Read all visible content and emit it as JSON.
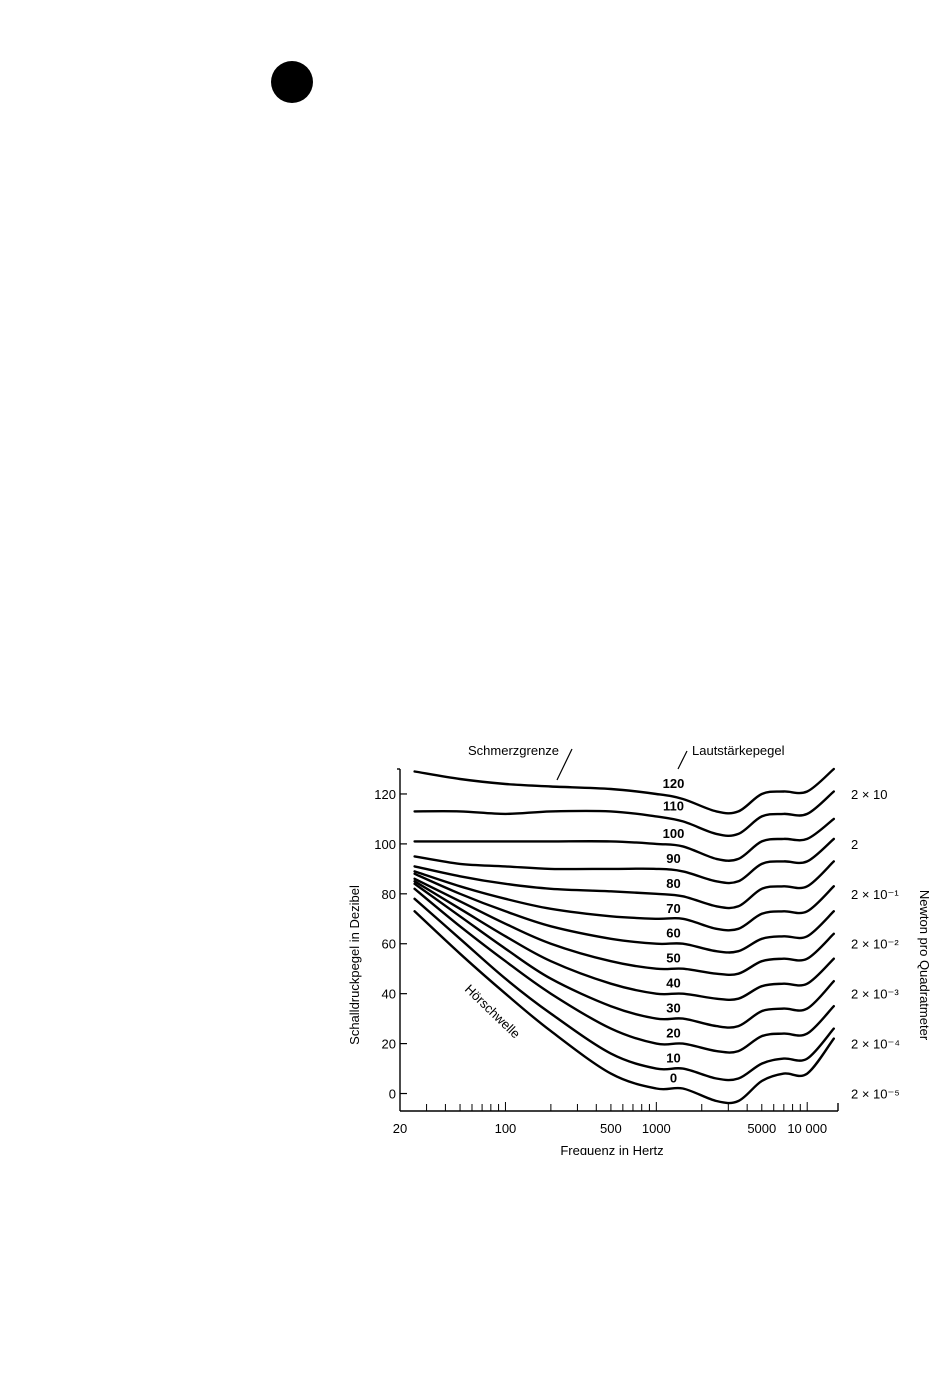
{
  "page": {
    "bullet_icon": "filled-circle-icon"
  },
  "chart_data": {
    "type": "line",
    "title": "",
    "xlabel": "Frequenz in Hertz",
    "ylabel": "Schalldruckpegel in Dezibel",
    "ylabel_right": "Newton pro Quadratmeter",
    "x_scale": "log",
    "xlim": [
      20,
      16000
    ],
    "ylim": [
      -7,
      130
    ],
    "x_ticks": [
      {
        "value": 20,
        "label": "20"
      },
      {
        "value": 100,
        "label": "100"
      },
      {
        "value": 500,
        "label": "500"
      },
      {
        "value": 1000,
        "label": "1000"
      },
      {
        "value": 5000,
        "label": "5000"
      },
      {
        "value": 10000,
        "label": "10 000"
      }
    ],
    "y_ticks": [
      0,
      20,
      40,
      60,
      80,
      100,
      120
    ],
    "right_axis_ticks": [
      {
        "db": 120,
        "label": "2 × 10"
      },
      {
        "db": 100,
        "label": "2"
      },
      {
        "db": 80,
        "label": "2 × 10⁻¹"
      },
      {
        "db": 60,
        "label": "2 × 10⁻²"
      },
      {
        "db": 40,
        "label": "2 × 10⁻³"
      },
      {
        "db": 20,
        "label": "2 × 10⁻⁴"
      },
      {
        "db": 0,
        "label": "2 × 10⁻⁵"
      }
    ],
    "annotations": {
      "pain_threshold": "Schmerzgrenze",
      "loudness_level": "Lautstärkepegel",
      "hearing_threshold": "Hörschwelle"
    },
    "x": [
      25,
      50,
      100,
      200,
      500,
      1000,
      1500,
      2500,
      3500,
      5000,
      7000,
      10000,
      15000
    ],
    "series": [
      {
        "name": "120",
        "values": [
          129,
          126,
          124,
          123,
          122,
          120,
          118,
          113,
          113,
          120,
          121,
          121,
          130
        ]
      },
      {
        "name": "110",
        "values": [
          113,
          113,
          112,
          113,
          113,
          111,
          109,
          104,
          104,
          111,
          112,
          112,
          121
        ]
      },
      {
        "name": "100",
        "values": [
          101,
          101,
          101,
          101,
          101,
          100,
          99,
          94,
          94,
          101,
          102,
          102,
          110
        ]
      },
      {
        "name": "90",
        "values": [
          95,
          92,
          91,
          90,
          90,
          90,
          89,
          85,
          85,
          92,
          93,
          93,
          102
        ]
      },
      {
        "name": "80",
        "values": [
          91,
          87,
          84,
          82,
          81,
          80,
          79,
          75,
          75,
          82,
          83,
          83,
          93
        ]
      },
      {
        "name": "70",
        "values": [
          89,
          83,
          78,
          74,
          71,
          70,
          70,
          66,
          66,
          72,
          73,
          73,
          83
        ]
      },
      {
        "name": "60",
        "values": [
          88,
          80,
          73,
          67,
          62,
          60,
          60,
          57,
          57,
          62,
          63,
          63,
          73
        ]
      },
      {
        "name": "50",
        "values": [
          86,
          77,
          68,
          60,
          53,
          50,
          50,
          48,
          48,
          53,
          54,
          54,
          64
        ]
      },
      {
        "name": "40",
        "values": [
          85,
          74,
          63,
          53,
          44,
          40,
          40,
          38,
          38,
          43,
          44,
          44,
          54
        ]
      },
      {
        "name": "30",
        "values": [
          84,
          71,
          58,
          46,
          35,
          30,
          30,
          27,
          27,
          33,
          34,
          34,
          45
        ]
      },
      {
        "name": "20",
        "values": [
          82,
          67,
          53,
          40,
          26,
          20,
          20,
          17,
          17,
          23,
          24,
          24,
          35
        ]
      },
      {
        "name": "10",
        "values": [
          78,
          62,
          46,
          32,
          16,
          10,
          10,
          6,
          6,
          12,
          14,
          14,
          26
        ]
      },
      {
        "name": "0",
        "values": [
          73,
          56,
          40,
          25,
          8,
          2,
          2,
          -3,
          -3,
          5,
          8,
          8,
          22
        ]
      }
    ],
    "grid": false,
    "legend": "none"
  }
}
